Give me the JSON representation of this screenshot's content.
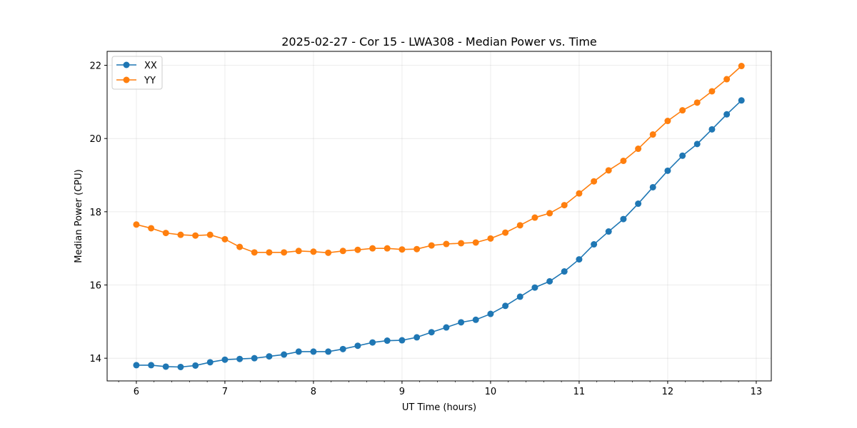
{
  "chart_data": {
    "type": "line",
    "title": "2025-02-27 - Cor 15 - LWA308 - Median Power vs. Time",
    "xlabel": "UT Time (hours)",
    "ylabel": "Median Power (CPU)",
    "xlim": [
      5.67,
      13.17
    ],
    "ylim": [
      13.38,
      22.38
    ],
    "xticks": [
      6,
      7,
      8,
      9,
      10,
      11,
      12,
      13
    ],
    "yticks": [
      14,
      16,
      18,
      20,
      22
    ],
    "grid": true,
    "legend_position": "top-left",
    "x": [
      6.0,
      6.167,
      6.333,
      6.5,
      6.667,
      6.833,
      7.0,
      7.167,
      7.333,
      7.5,
      7.667,
      7.833,
      8.0,
      8.167,
      8.333,
      8.5,
      8.667,
      8.833,
      9.0,
      9.167,
      9.333,
      9.5,
      9.667,
      9.833,
      10.0,
      10.167,
      10.333,
      10.5,
      10.667,
      10.833,
      11.0,
      11.167,
      11.333,
      11.5,
      11.667,
      11.833,
      12.0,
      12.167,
      12.333,
      12.5,
      12.667,
      12.833
    ],
    "series": [
      {
        "name": "XX",
        "color": "#1f77b4",
        "values": [
          13.81,
          13.81,
          13.77,
          13.76,
          13.8,
          13.89,
          13.96,
          13.98,
          14.0,
          14.05,
          14.1,
          14.18,
          14.18,
          14.18,
          14.25,
          14.34,
          14.43,
          14.48,
          14.49,
          14.57,
          14.71,
          14.84,
          14.98,
          15.05,
          15.21,
          15.43,
          15.68,
          15.93,
          16.1,
          16.37,
          16.7,
          17.11,
          17.46,
          17.8,
          18.22,
          18.67,
          19.12,
          19.53,
          19.85,
          20.25,
          20.66,
          21.04
        ]
      },
      {
        "name": "YY",
        "color": "#ff7f0e",
        "values": [
          17.65,
          17.55,
          17.42,
          17.37,
          17.35,
          17.37,
          17.25,
          17.04,
          16.89,
          16.89,
          16.89,
          16.93,
          16.91,
          16.88,
          16.93,
          16.96,
          17.0,
          17.0,
          16.97,
          16.98,
          17.08,
          17.12,
          17.14,
          17.16,
          17.27,
          17.43,
          17.63,
          17.84,
          17.96,
          18.18,
          18.5,
          18.83,
          19.13,
          19.39,
          19.72,
          20.11,
          20.48,
          20.77,
          20.98,
          21.29,
          21.62,
          21.98
        ]
      }
    ]
  }
}
